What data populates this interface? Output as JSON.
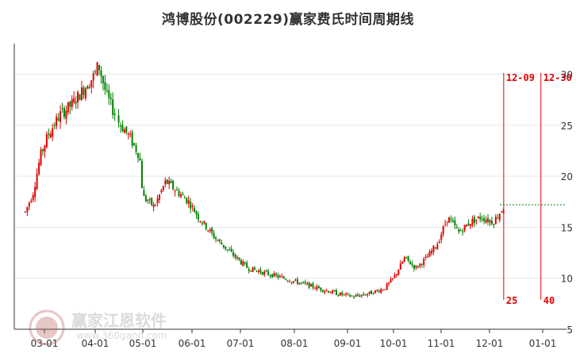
{
  "title": "鸿博股份(002229)赢家费氏时间周期线",
  "watermark": {
    "name": "赢家江恩软件",
    "url": "www.360gann.com"
  },
  "colors": {
    "up": "#e00000",
    "down": "#008000",
    "grid": "#e6e6e6",
    "vline": "#e00000",
    "hline": "#008000"
  },
  "chart_data": {
    "type": "candlestick",
    "title": "鸿博股份(002229)赢家费氏时间周期线",
    "x_ticks": [
      "03-01",
      "04-01",
      "05-01",
      "06-01",
      "07-01",
      "08-01",
      "09-01",
      "10-01",
      "11-01",
      "12-01",
      "01-01"
    ],
    "y_ticks": [
      5,
      10,
      15,
      20,
      25,
      30
    ],
    "ylim": [
      5,
      33
    ],
    "grid": true,
    "series_close": [
      {
        "date": "02-12",
        "close": 16.5
      },
      {
        "date": "02-20",
        "close": 18.5
      },
      {
        "date": "02-27",
        "close": 22.0
      },
      {
        "date": "03-03",
        "close": 24.0
      },
      {
        "date": "03-10",
        "close": 26.0
      },
      {
        "date": "03-17",
        "close": 27.0
      },
      {
        "date": "03-24",
        "close": 28.5
      },
      {
        "date": "03-31",
        "close": 30.0
      },
      {
        "date": "04-03",
        "close": 31.0
      },
      {
        "date": "04-08",
        "close": 28.0
      },
      {
        "date": "04-15",
        "close": 25.5
      },
      {
        "date": "04-22",
        "close": 24.0
      },
      {
        "date": "04-29",
        "close": 22.0
      },
      {
        "date": "05-01",
        "close": 18.0
      },
      {
        "date": "05-08",
        "close": 17.0
      },
      {
        "date": "05-15",
        "close": 19.5
      },
      {
        "date": "05-22",
        "close": 18.5
      },
      {
        "date": "05-29",
        "close": 17.5
      },
      {
        "date": "06-05",
        "close": 16.0
      },
      {
        "date": "06-15",
        "close": 14.0
      },
      {
        "date": "06-25",
        "close": 12.5
      },
      {
        "date": "07-05",
        "close": 11.0
      },
      {
        "date": "07-15",
        "close": 10.5
      },
      {
        "date": "07-25",
        "close": 10.0
      },
      {
        "date": "08-05",
        "close": 9.5
      },
      {
        "date": "08-15",
        "close": 9.0
      },
      {
        "date": "08-25",
        "close": 8.5
      },
      {
        "date": "09-05",
        "close": 8.2
      },
      {
        "date": "09-15",
        "close": 8.5
      },
      {
        "date": "09-25",
        "close": 9.0
      },
      {
        "date": "10-01",
        "close": 10.0
      },
      {
        "date": "10-08",
        "close": 12.0
      },
      {
        "date": "10-15",
        "close": 11.0
      },
      {
        "date": "10-22",
        "close": 12.0
      },
      {
        "date": "10-29",
        "close": 13.5
      },
      {
        "date": "11-05",
        "close": 16.0
      },
      {
        "date": "11-12",
        "close": 14.5
      },
      {
        "date": "11-19",
        "close": 15.5
      },
      {
        "date": "11-26",
        "close": 16.0
      },
      {
        "date": "12-03",
        "close": 15.5
      },
      {
        "date": "12-09",
        "close": 17.0
      }
    ],
    "horizontal_line": 17.2,
    "time_lines": [
      {
        "date": "12-09",
        "label_top": "12-09",
        "label_bottom": "25"
      },
      {
        "date": "12-30",
        "label_top": "12-30",
        "label_bottom": "40"
      }
    ]
  }
}
